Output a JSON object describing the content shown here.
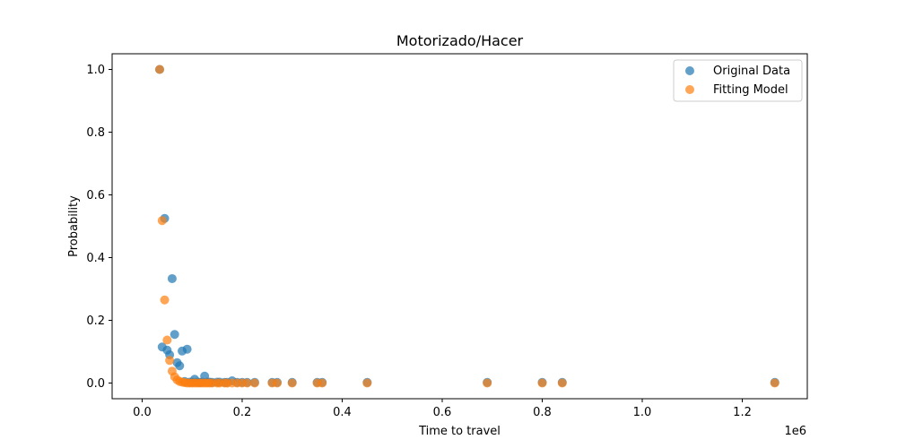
{
  "chart_data": {
    "type": "scatter",
    "title": "Motorizado/Hacer",
    "xlabel": "Time to travel",
    "ylabel": "Probability",
    "x_offset_label": "1e6",
    "x_scale": 1000000,
    "xlim": [
      -60000,
      1330000
    ],
    "ylim": [
      -0.05,
      1.05
    ],
    "xticks": [
      0.0,
      0.2,
      0.4,
      0.6,
      0.8,
      1.0,
      1.2
    ],
    "xtick_labels": [
      "0.0",
      "0.2",
      "0.4",
      "0.6",
      "0.8",
      "1.0",
      "1.2"
    ],
    "yticks": [
      0.0,
      0.2,
      0.4,
      0.6,
      0.8,
      1.0
    ],
    "ytick_labels": [
      "0.0",
      "0.2",
      "0.4",
      "0.6",
      "0.8",
      "1.0"
    ],
    "grid": false,
    "legend_position": "top-right",
    "series": [
      {
        "name": "Original Data",
        "color": "#1f77b4",
        "points": [
          [
            35000,
            1.0
          ],
          [
            40000,
            0.115
          ],
          [
            45000,
            0.525
          ],
          [
            50000,
            0.105
          ],
          [
            55000,
            0.09
          ],
          [
            60000,
            0.333
          ],
          [
            65000,
            0.155
          ],
          [
            70000,
            0.065
          ],
          [
            75000,
            0.055
          ],
          [
            80000,
            0.102
          ],
          [
            85000,
            0.005
          ],
          [
            90000,
            0.108
          ],
          [
            95000,
            0.003
          ],
          [
            100000,
            0.003
          ],
          [
            105000,
            0.012
          ],
          [
            110000,
            0.003
          ],
          [
            115000,
            0.002
          ],
          [
            120000,
            0.003
          ],
          [
            125000,
            0.022
          ],
          [
            130000,
            0.003
          ],
          [
            135000,
            0.003
          ],
          [
            140000,
            0.002
          ],
          [
            150000,
            0.003
          ],
          [
            155000,
            0.003
          ],
          [
            165000,
            0.002
          ],
          [
            170000,
            0.002
          ],
          [
            180000,
            0.007
          ],
          [
            190000,
            0.002
          ],
          [
            200000,
            0.002
          ],
          [
            210000,
            0.002
          ],
          [
            225000,
            0.002
          ],
          [
            260000,
            0.002
          ],
          [
            270000,
            0.002
          ],
          [
            300000,
            0.002
          ],
          [
            350000,
            0.002
          ],
          [
            360000,
            0.002
          ],
          [
            450000,
            0.002
          ],
          [
            690000,
            0.002
          ],
          [
            800000,
            0.002
          ],
          [
            840000,
            0.002
          ],
          [
            1265000,
            0.002
          ]
        ]
      },
      {
        "name": "Fitting Model",
        "color": "#ff7f0e",
        "points": [
          [
            35000,
            1.0
          ],
          [
            40000,
            0.518
          ],
          [
            45000,
            0.265
          ],
          [
            50000,
            0.137
          ],
          [
            55000,
            0.072
          ],
          [
            60000,
            0.038
          ],
          [
            65000,
            0.02
          ],
          [
            70000,
            0.01
          ],
          [
            75000,
            0.005
          ],
          [
            80000,
            0.003
          ],
          [
            85000,
            0.001
          ],
          [
            90000,
            0.0
          ],
          [
            95000,
            0.0
          ],
          [
            100000,
            0.0
          ],
          [
            105000,
            0.0
          ],
          [
            110000,
            0.0
          ],
          [
            115000,
            0.0
          ],
          [
            120000,
            0.0
          ],
          [
            125000,
            0.0
          ],
          [
            130000,
            0.0
          ],
          [
            135000,
            0.0
          ],
          [
            140000,
            0.0
          ],
          [
            150000,
            0.0
          ],
          [
            155000,
            0.0
          ],
          [
            165000,
            0.0
          ],
          [
            170000,
            0.0
          ],
          [
            180000,
            0.0
          ],
          [
            190000,
            0.0
          ],
          [
            200000,
            0.0
          ],
          [
            210000,
            0.0
          ],
          [
            225000,
            0.0
          ],
          [
            260000,
            0.0
          ],
          [
            270000,
            0.0
          ],
          [
            300000,
            0.0
          ],
          [
            350000,
            0.0
          ],
          [
            360000,
            0.0
          ],
          [
            450000,
            0.0
          ],
          [
            690000,
            0.0
          ],
          [
            800000,
            0.0
          ],
          [
            840000,
            0.0
          ],
          [
            1265000,
            0.0
          ]
        ]
      }
    ]
  }
}
